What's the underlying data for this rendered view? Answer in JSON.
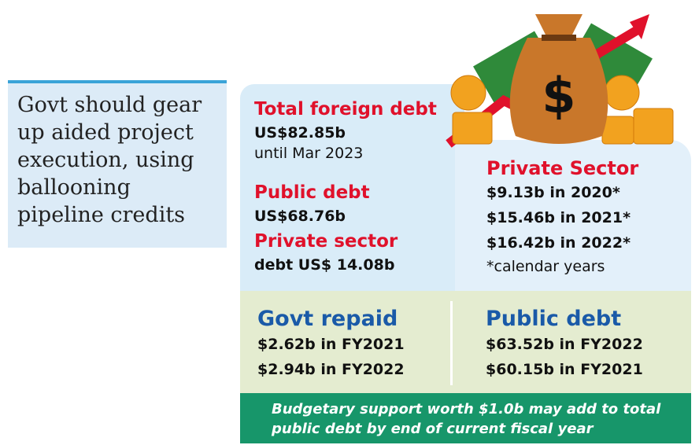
{
  "pull_quote": "Govt should gear up aided project execution, using ballooning pipeline credits",
  "left_panel": {
    "total_heading": "Total foreign debt",
    "total_value": "US$82.85b",
    "total_note": "until Mar 2023",
    "public_heading": "Public debt",
    "public_value": "US$68.76b",
    "private_heading": "Private sector",
    "private_value": "debt US$ 14.08b"
  },
  "private_sector": {
    "heading": "Private Sector",
    "lines": [
      "$9.13b in 2020*",
      "$15.46b in 2021*",
      "$16.42b in 2022*"
    ],
    "note": "*calendar years"
  },
  "govt_repaid": {
    "heading": "Govt repaid",
    "lines": [
      "$2.62b in FY2021",
      "$2.94b in FY2022"
    ]
  },
  "public_debt": {
    "heading": "Public debt",
    "lines": [
      "$63.52b in FY2022",
      "$60.15b in FY2021"
    ]
  },
  "banner": "Budgetary support worth $1.0b may add to total public debt by end of current fiscal year",
  "illustration": {
    "icon": "money-bag-icon",
    "symbol": "$"
  },
  "colors": {
    "red": "#e0112b",
    "blue": "#1a5aa8",
    "green": "#17966a",
    "panel_blue": "#d9ecf8",
    "panel_green": "#e4ecd0"
  }
}
